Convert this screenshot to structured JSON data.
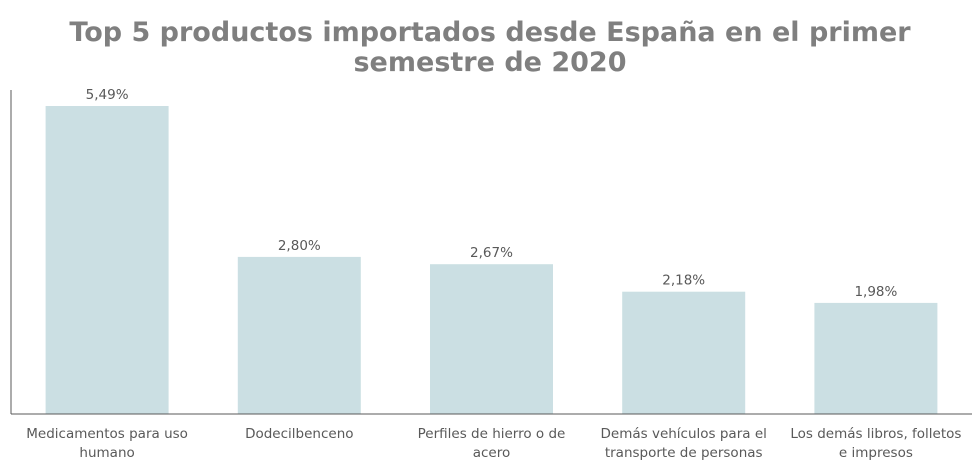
{
  "chart_data": {
    "type": "bar",
    "title": "Top 5 productos importados desde España en el primer semestre de 2020",
    "categories": [
      "Medicamentos para uso humano",
      "Dodecilbenceno",
      "Perfiles de hierro o de acero",
      "Demás vehículos para el transporte de personas",
      "Los demás libros, folletos e impresos"
    ],
    "values": [
      5.49,
      2.8,
      2.67,
      2.18,
      1.98
    ],
    "data_labels": [
      "5,49%",
      "2,80%",
      "2,67%",
      "2,18%",
      "1,98%"
    ],
    "category_label_lines": [
      [
        "Medicamentos para uso",
        "humano"
      ],
      [
        "Dodecilbenceno"
      ],
      [
        "Perfiles de hierro o de",
        "acero"
      ],
      [
        "Demás vehículos para el",
        "transporte de personas"
      ],
      [
        "Los demás libros, folletos",
        "e impresos"
      ]
    ],
    "ylim": [
      0,
      5.49
    ],
    "xlabel": "",
    "ylabel": "",
    "grid": false,
    "legend": "none",
    "colors": {
      "bar": "#cbdfe3",
      "axis": "#595959",
      "title": "#7f7f7f",
      "text": "#595959"
    }
  }
}
